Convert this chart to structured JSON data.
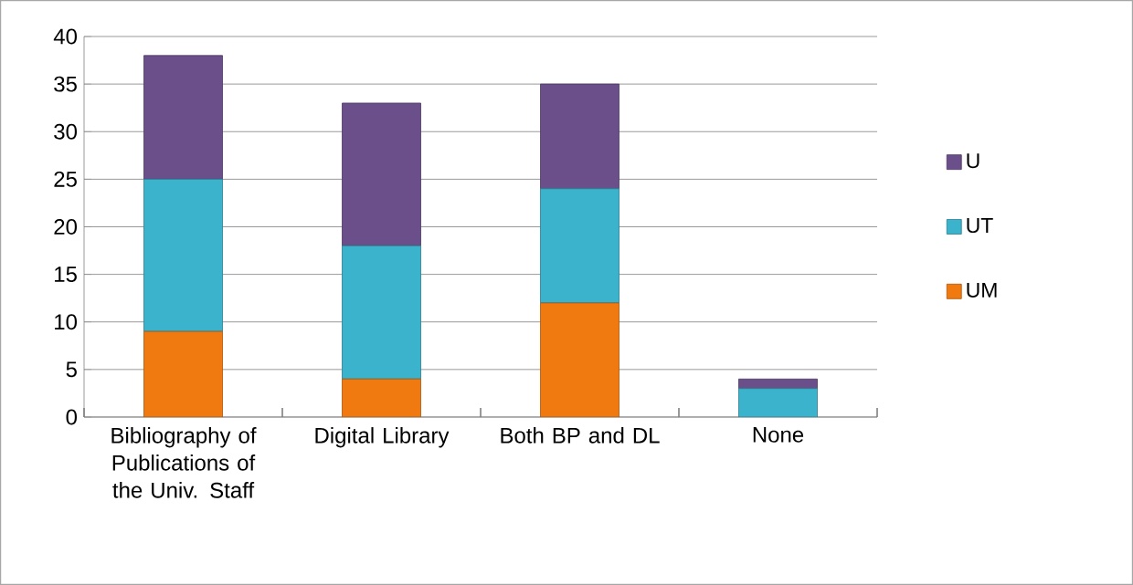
{
  "chart_data": {
    "type": "bar",
    "stacked": true,
    "categories": [
      "Bibliography of Publications of the Univ. Staff",
      "Digital Library",
      "Both BP and DL",
      "None"
    ],
    "series": [
      {
        "name": "UM",
        "color": "#f07a10",
        "values": [
          9,
          4,
          12,
          0
        ]
      },
      {
        "name": "UT",
        "color": "#3bb3cc",
        "values": [
          16,
          14,
          12,
          3
        ]
      },
      {
        "name": "U",
        "color": "#6a4f8a",
        "values": [
          13,
          15,
          11,
          1
        ]
      }
    ],
    "ylim": [
      0,
      40
    ],
    "yticks": [
      0,
      5,
      10,
      15,
      20,
      25,
      30,
      35,
      40
    ],
    "grid": "y",
    "legend": "right"
  }
}
